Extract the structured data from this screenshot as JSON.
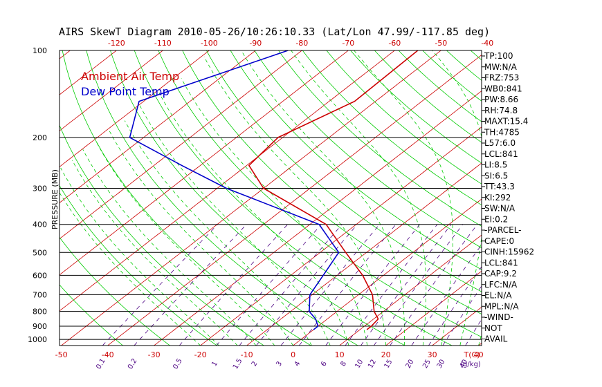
{
  "chart_data": {
    "type": "line",
    "title": "AIRS SkewT Diagram 2010-05-26/10:26:10.33 (Lat/Lon 47.99/-117.85 deg)",
    "ylabel": "PRESSURE (MB)",
    "x_unit": "T(C)",
    "mixing_unit": "g/kg",
    "pressure_ticks": [
      100,
      200,
      300,
      400,
      500,
      600,
      700,
      800,
      900,
      1000
    ],
    "top_temp_ticks": [
      -120,
      -110,
      -100,
      -90,
      -80,
      -70,
      -60,
      -50,
      -40
    ],
    "bottom_temp_ticks": [
      -50,
      -40,
      -30,
      -20,
      -10,
      0,
      10,
      20,
      30,
      40
    ],
    "mixing_ratio_ticks": [
      "0.1",
      "0.2",
      "0.5",
      "1",
      "1.5",
      "2",
      "3",
      "4",
      "6",
      "8",
      "10",
      "12",
      "15",
      "20",
      "25",
      "30",
      "40"
    ],
    "colors": {
      "temperature": "#cc0000",
      "dewpoint": "#0000cc",
      "isotherm": "#cc0000",
      "dry_adiabat": "#00cc00",
      "moist_adiabat": "#00cc00",
      "mixing_ratio": "#4b0082",
      "isobar": "#000000"
    },
    "series": [
      {
        "name": "Ambient Air Temp",
        "points": [
          {
            "p": 100,
            "t": -55.0
          },
          {
            "p": 150,
            "t": -54.5
          },
          {
            "p": 200,
            "t": -61.0
          },
          {
            "p": 250,
            "t": -59.5
          },
          {
            "p": 300,
            "t": -50.0
          },
          {
            "p": 400,
            "t": -26.5
          },
          {
            "p": 500,
            "t": -14.5
          },
          {
            "p": 600,
            "t": -4.5
          },
          {
            "p": 700,
            "t": 3.0
          },
          {
            "p": 800,
            "t": 8.0
          },
          {
            "p": 850,
            "t": 11.0
          },
          {
            "p": 900,
            "t": 11.5
          },
          {
            "p": 925,
            "t": 11.5
          }
        ]
      },
      {
        "name": "Dew Point Temp",
        "points": [
          {
            "p": 100,
            "t": -83.0
          },
          {
            "p": 150,
            "t": -101.0
          },
          {
            "p": 200,
            "t": -93.0
          },
          {
            "p": 250,
            "t": -74.0
          },
          {
            "p": 300,
            "t": -58.0
          },
          {
            "p": 400,
            "t": -28.0
          },
          {
            "p": 500,
            "t": -16.0
          },
          {
            "p": 600,
            "t": -13.0
          },
          {
            "p": 700,
            "t": -10.5
          },
          {
            "p": 800,
            "t": -6.0
          },
          {
            "p": 850,
            "t": -2.5
          },
          {
            "p": 900,
            "t": 0.0
          },
          {
            "p": 925,
            "t": 0.0
          }
        ]
      }
    ],
    "indices": [
      "TP:100",
      "MW:N/A",
      "FRZ:753",
      "WB0:841",
      "PW:8.66",
      "RH:74.8",
      "MAXT:15.4",
      "TH:4785",
      "L57:6.0",
      "LCL:841",
      "LI:8.5",
      "SI:6.5",
      "TT:43.3",
      "KI:292",
      "SW:N/A",
      "EI:0.2",
      "-PARCEL-",
      "CAPE:0",
      "CINH:15962",
      "LCL:841",
      "CAP:9.2",
      "LFC:N/A",
      "EL:N/A",
      "MPL:N/A",
      "-WIND-",
      "NOT",
      "AVAIL"
    ]
  }
}
